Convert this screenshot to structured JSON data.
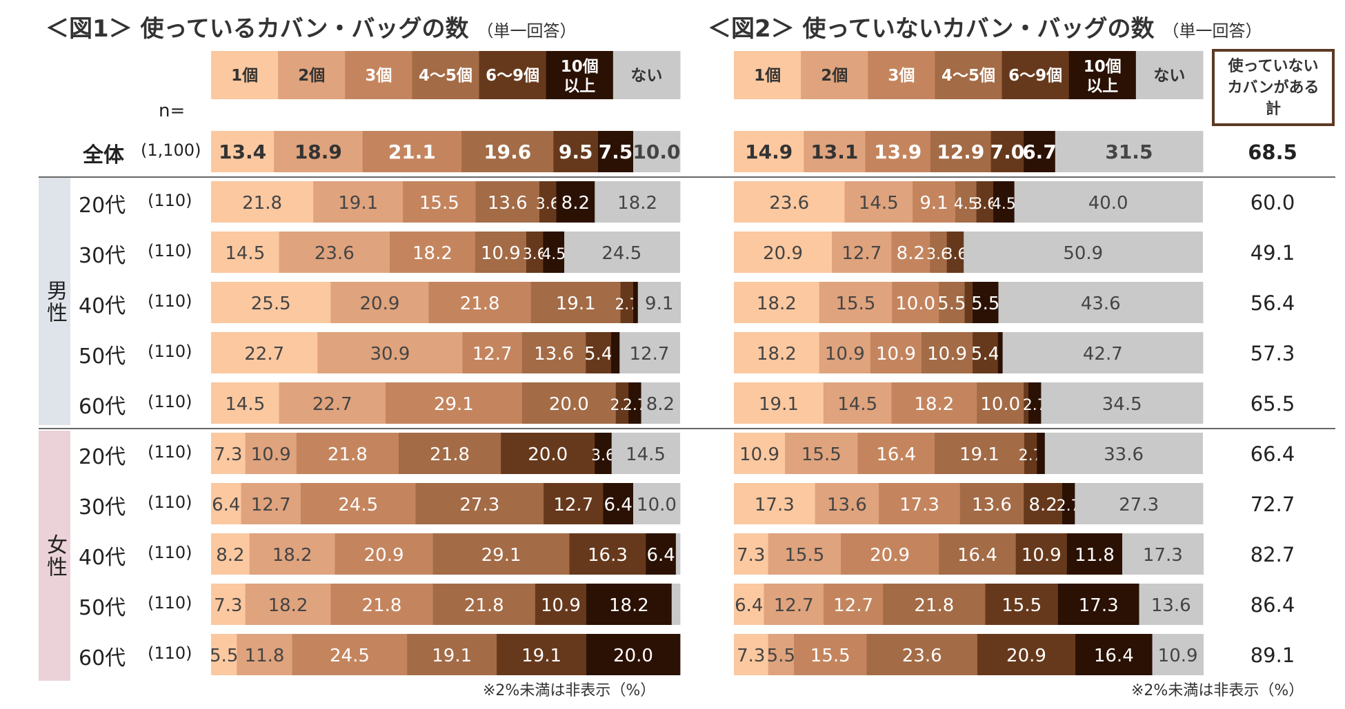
{
  "titles": {
    "fig1": "＜図1＞ 使っているカバン・バッグの数",
    "fig2": "＜図2＞ 使っていないカバン・バッグの数",
    "sub": "（単一回答）"
  },
  "n_label": "n=",
  "groups": {
    "male": "男性",
    "female": "女性"
  },
  "total_header": "使っていない カバンがある 計",
  "note": "※2%未満は非表示（%）",
  "colors": [
    "#fbc8a0",
    "#dfa37d",
    "#c4855e",
    "#a36b46",
    "#67391c",
    "#2b1103",
    "#c9c9c9"
  ],
  "chart_data": [
    {
      "type": "bar",
      "title": "＜図1＞ 使っているカバン・バッグの数",
      "subtitle": "（単一回答）",
      "orientation": "horizontal-stacked-100",
      "categories": [
        "1個",
        "2個",
        "3個",
        "4〜5個",
        "6〜9個",
        "10個以上",
        "ない"
      ],
      "rows": [
        {
          "label": "全体",
          "n": "(1,100)",
          "values": [
            13.4,
            18.9,
            21.1,
            19.6,
            9.5,
            7.5,
            10.0
          ]
        },
        {
          "label": "20代",
          "n": "(110)",
          "group": "男性",
          "values": [
            21.8,
            19.1,
            15.5,
            13.6,
            3.6,
            8.2,
            18.2
          ]
        },
        {
          "label": "30代",
          "n": "(110)",
          "group": "男性",
          "values": [
            14.5,
            23.6,
            18.2,
            10.9,
            3.6,
            4.5,
            24.5
          ]
        },
        {
          "label": "40代",
          "n": "(110)",
          "group": "男性",
          "values": [
            25.5,
            20.9,
            21.8,
            19.1,
            2.7,
            1.0,
            9.1
          ]
        },
        {
          "label": "50代",
          "n": "(110)",
          "group": "男性",
          "values": [
            22.7,
            30.9,
            12.7,
            13.6,
            5.4,
            1.8,
            12.7
          ]
        },
        {
          "label": "60代",
          "n": "(110)",
          "group": "男性",
          "values": [
            14.5,
            22.7,
            29.1,
            20.0,
            2.7,
            2.7,
            8.2
          ]
        },
        {
          "label": "20代",
          "n": "(110)",
          "group": "女性",
          "values": [
            7.3,
            10.9,
            21.8,
            21.8,
            20.0,
            3.6,
            14.5
          ]
        },
        {
          "label": "30代",
          "n": "(110)",
          "group": "女性",
          "values": [
            6.4,
            12.7,
            24.5,
            27.3,
            12.7,
            6.4,
            10.0
          ]
        },
        {
          "label": "40代",
          "n": "(110)",
          "group": "女性",
          "values": [
            8.2,
            18.2,
            20.9,
            29.1,
            16.3,
            6.4,
            0.9
          ]
        },
        {
          "label": "50代",
          "n": "(110)",
          "group": "女性",
          "values": [
            7.3,
            18.2,
            21.8,
            21.8,
            10.9,
            18.2,
            1.8
          ]
        },
        {
          "label": "60代",
          "n": "(110)",
          "group": "女性",
          "values": [
            5.5,
            11.8,
            24.5,
            19.1,
            19.1,
            20.0,
            0.0
          ]
        }
      ]
    },
    {
      "type": "bar",
      "title": "＜図2＞ 使っていないカバン・バッグの数",
      "subtitle": "（単一回答）",
      "orientation": "horizontal-stacked-100",
      "categories": [
        "1個",
        "2個",
        "3個",
        "4〜5個",
        "6〜9個",
        "10個以上",
        "ない"
      ],
      "total_label": "使っていない カバンがある 計",
      "rows": [
        {
          "label": "全体",
          "n": "(1,100)",
          "values": [
            14.9,
            13.1,
            13.9,
            12.9,
            7.0,
            6.7,
            31.5
          ],
          "total": "68.5"
        },
        {
          "label": "20代",
          "n": "(110)",
          "group": "男性",
          "values": [
            23.6,
            14.5,
            9.1,
            4.5,
            3.6,
            4.5,
            40.0
          ],
          "total": "60.0"
        },
        {
          "label": "30代",
          "n": "(110)",
          "group": "男性",
          "values": [
            20.9,
            12.7,
            8.2,
            3.6,
            3.6,
            0.0,
            50.9
          ],
          "total": "49.1"
        },
        {
          "label": "40代",
          "n": "(110)",
          "group": "男性",
          "values": [
            18.2,
            15.5,
            10.0,
            5.5,
            1.7,
            5.5,
            43.6
          ],
          "total": "56.4"
        },
        {
          "label": "50代",
          "n": "(110)",
          "group": "男性",
          "values": [
            18.2,
            10.9,
            10.9,
            10.9,
            5.4,
            1.0,
            42.7
          ],
          "total": "57.3"
        },
        {
          "label": "60代",
          "n": "(110)",
          "group": "男性",
          "values": [
            19.1,
            14.5,
            18.2,
            10.0,
            1.0,
            2.7,
            34.5
          ],
          "total": "65.5"
        },
        {
          "label": "20代",
          "n": "(110)",
          "group": "女性",
          "values": [
            10.9,
            15.5,
            16.4,
            19.1,
            2.7,
            1.7,
            33.6
          ],
          "total": "66.4"
        },
        {
          "label": "30代",
          "n": "(110)",
          "group": "女性",
          "values": [
            17.3,
            13.6,
            17.3,
            13.6,
            8.2,
            2.7,
            27.3
          ],
          "total": "72.7"
        },
        {
          "label": "40代",
          "n": "(110)",
          "group": "女性",
          "values": [
            7.3,
            15.5,
            20.9,
            16.4,
            10.9,
            11.8,
            17.3
          ],
          "total": "82.7"
        },
        {
          "label": "50代",
          "n": "(110)",
          "group": "女性",
          "values": [
            6.4,
            12.7,
            12.7,
            21.8,
            15.5,
            17.3,
            13.6
          ],
          "total": "86.4"
        },
        {
          "label": "60代",
          "n": "(110)",
          "group": "女性",
          "values": [
            7.3,
            5.5,
            15.5,
            23.6,
            20.9,
            16.4,
            10.9
          ],
          "total": "89.1"
        }
      ]
    }
  ]
}
